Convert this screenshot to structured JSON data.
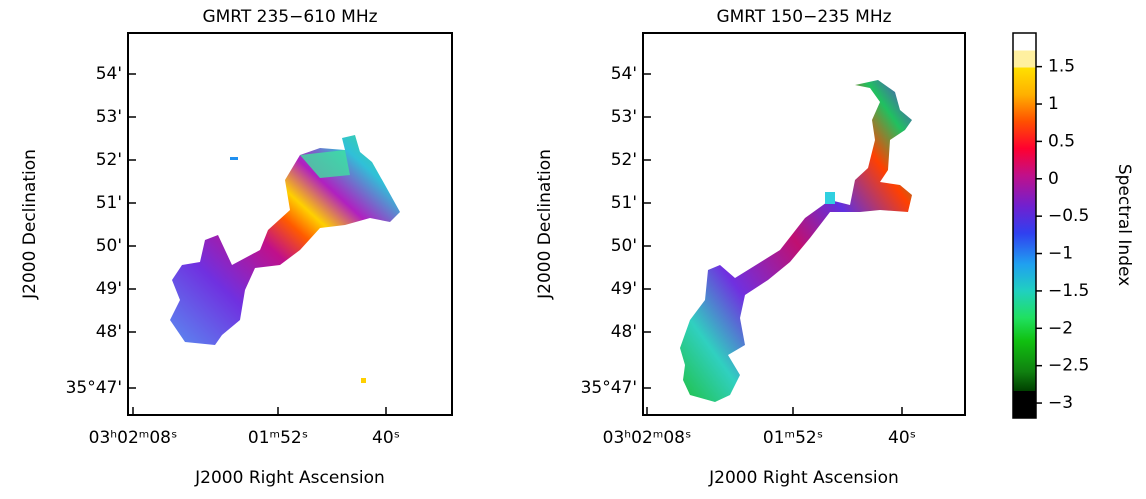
{
  "panels": [
    {
      "title": "GMRT 235−610 MHz",
      "x_label": "J2000 Right Ascension",
      "y_label": "J2000 Declination",
      "y_ticks": [
        "54'",
        "53'",
        "52'",
        "51'",
        "50'",
        "49'",
        "48'",
        "35°47'"
      ],
      "x_ticks": [
        "03ʰ02ᵐ08ˢ",
        "01ᵐ52ˢ",
        "40ˢ"
      ]
    },
    {
      "title": "GMRT 150−235 MHz",
      "x_label": "J2000 Right Ascension",
      "y_label": "J2000 Declination",
      "y_ticks": [
        "54'",
        "53'",
        "52'",
        "51'",
        "50'",
        "49'",
        "48'",
        "35°47'"
      ],
      "x_ticks": [
        "03ʰ02ᵐ08ˢ",
        "01ᵐ52ˢ",
        "40ˢ"
      ]
    }
  ],
  "colorbar": {
    "label": "Spectral Index",
    "range": [
      -3.2,
      1.95
    ],
    "ticks": [
      {
        "value": 1.5,
        "label": "1.5"
      },
      {
        "value": 1,
        "label": "1"
      },
      {
        "value": 0.5,
        "label": "0.5"
      },
      {
        "value": 0,
        "label": "0"
      },
      {
        "value": -0.5,
        "label": "−0.5"
      },
      {
        "value": -1,
        "label": "−1"
      },
      {
        "value": -1.5,
        "label": "−1.5"
      },
      {
        "value": -2,
        "label": "−2"
      },
      {
        "value": -2.5,
        "label": "−2.5"
      },
      {
        "value": -3,
        "label": "−3"
      }
    ]
  }
}
